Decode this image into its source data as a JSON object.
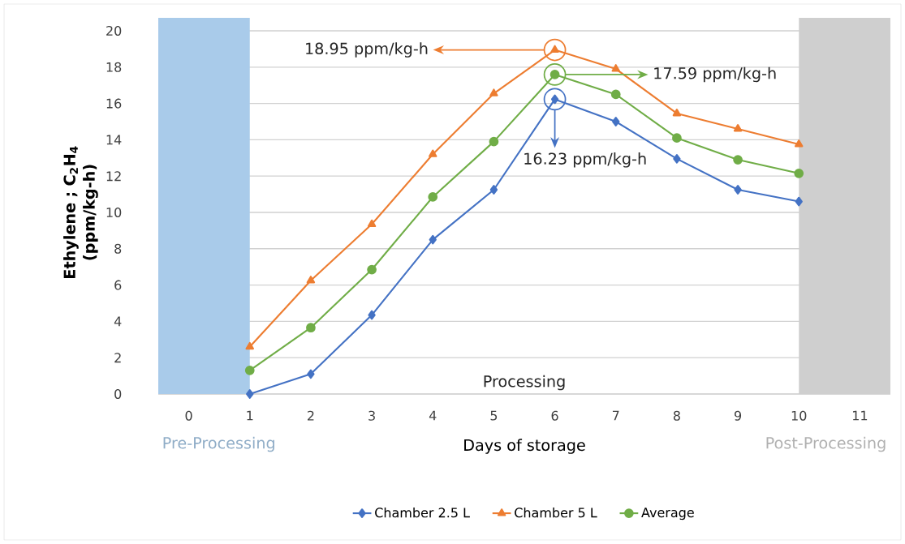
{
  "chart_data": {
    "type": "line",
    "xlabel": "Days of storage",
    "ylabel": "Ethylene ; C$_{2}$H$_{4}$ (ppm/kg-h)",
    "xlim": [
      -0.5,
      11.5
    ],
    "xticks": [
      0,
      1,
      2,
      3,
      4,
      5,
      6,
      7,
      8,
      9,
      10,
      11
    ],
    "ylim": [
      0,
      20
    ],
    "yticks": [
      0,
      2,
      4,
      6,
      8,
      10,
      12,
      14,
      16,
      18,
      20
    ],
    "grid": "y",
    "legend": "bottom",
    "series": [
      {
        "name": "Chamber 2.5 L",
        "color": "#4472c4",
        "marker": "diamond",
        "x": [
          1,
          2,
          3,
          4,
          5,
          6,
          7,
          8,
          9,
          10
        ],
        "values": [
          0.0,
          1.1,
          4.35,
          8.5,
          11.25,
          16.23,
          15.0,
          12.95,
          11.25,
          10.6
        ]
      },
      {
        "name": "Chamber 5 L",
        "color": "#ed7d31",
        "marker": "triangle",
        "x": [
          1,
          2,
          3,
          4,
          5,
          6,
          7,
          8,
          9,
          10
        ],
        "values": [
          2.6,
          6.25,
          9.35,
          13.2,
          16.55,
          18.95,
          17.9,
          15.45,
          14.6,
          13.75
        ]
      },
      {
        "name": "Average",
        "color": "#70ad47",
        "marker": "circle",
        "x": [
          1,
          2,
          3,
          4,
          5,
          6,
          7,
          8,
          9,
          10
        ],
        "values": [
          1.3,
          3.65,
          6.85,
          10.85,
          13.9,
          17.59,
          16.5,
          14.1,
          12.9,
          12.15
        ]
      }
    ],
    "bands": [
      {
        "axis": "x",
        "from": -0.5,
        "to": 1,
        "label": "Pre-Processing",
        "color": "#a9cbea"
      },
      {
        "axis": "x",
        "from": 10,
        "to": 11.5,
        "label": "Post-Processing",
        "color": "#cfcfcf"
      }
    ],
    "annotations": [
      "18.95 ppm/kg-h",
      "17.59 ppm/kg-h",
      "16.23 ppm/kg-h",
      "Processing"
    ]
  }
}
